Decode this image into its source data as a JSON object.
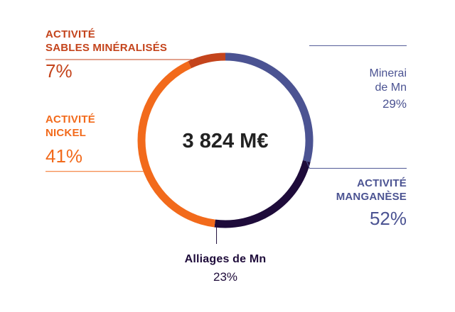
{
  "chart_data": {
    "type": "pie",
    "style": "donut",
    "center_label": "3 824 M€",
    "groups": [
      {
        "name": "ACTIVITÉ SABLES MINÉRALISÉS",
        "line1": "ACTIVITÉ",
        "line2": "SABLES MINÉRALISÉS",
        "percent": 7,
        "label": "7%",
        "color": "#c4441c"
      },
      {
        "name": "ACTIVITÉ NICKEL",
        "line1": "ACTIVITÉ",
        "line2": "NICKEL",
        "percent": 41,
        "label": "41%",
        "color": "#f26a1b"
      },
      {
        "name": "ACTIVITÉ MANGANÈSE",
        "line1": "ACTIVITÉ",
        "line2": "MANGANÈSE",
        "percent": 52,
        "label": "52%",
        "color": "#4b5392",
        "subsegments": [
          {
            "line1": "Minerai",
            "line2": "de Mn",
            "percent": 29,
            "label": "29%",
            "color": "#4b5392"
          },
          {
            "line1": "Alliages de Mn",
            "percent": 23,
            "label": "23%",
            "color": "#1e0b3a"
          }
        ]
      }
    ],
    "slices": [
      {
        "name": "Minerai de Mn",
        "value": 29,
        "color": "#4b5392"
      },
      {
        "name": "Alliages de Mn",
        "value": 23,
        "color": "#1e0b3a"
      },
      {
        "name": "ACTIVITÉ NICKEL",
        "value": 41,
        "color": "#f26a1b"
      },
      {
        "name": "ACTIVITÉ SABLES MINÉRALISÉS",
        "value": 7,
        "color": "#c4441c"
      }
    ],
    "start_angle_deg": 90,
    "direction": "clockwise"
  }
}
